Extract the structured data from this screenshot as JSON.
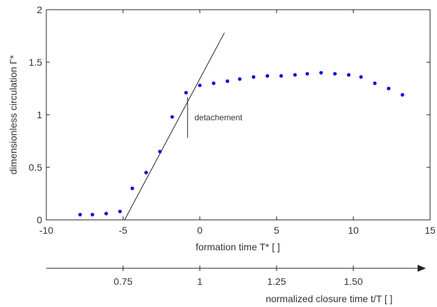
{
  "chart_data": {
    "type": "scatter",
    "title": "",
    "xlabel": "formation time T*  [ ]",
    "ylabel": "dimensionless circulation Γ*",
    "xlim": [
      -10,
      15
    ],
    "ylim": [
      0,
      2
    ],
    "xticks": [
      -10,
      -5,
      0,
      5,
      10,
      15
    ],
    "yticks": [
      0,
      0.5,
      1,
      1.5,
      2
    ],
    "xtick_labels": [
      "-10",
      "-5",
      "0",
      "5",
      "10",
      "15"
    ],
    "ytick_labels": [
      "0",
      "0.5",
      "1",
      "1.5",
      "2"
    ],
    "grid": false,
    "legend": "none",
    "marker_color": "#1010e0",
    "series": [
      {
        "x": [
          -7.8,
          -7.0,
          -6.1,
          -5.2,
          -4.4,
          -3.5,
          -2.6,
          -1.8,
          -0.9,
          0.0,
          0.9,
          1.8,
          2.6,
          3.5,
          4.4,
          5.3,
          6.2,
          7.0,
          7.9,
          8.8,
          9.7,
          10.5,
          11.4,
          12.3,
          13.2
        ],
        "y": [
          0.05,
          0.05,
          0.06,
          0.08,
          0.3,
          0.45,
          0.65,
          0.98,
          1.21,
          1.28,
          1.3,
          1.32,
          1.34,
          1.36,
          1.37,
          1.37,
          1.38,
          1.39,
          1.4,
          1.39,
          1.38,
          1.36,
          1.3,
          1.25,
          1.19
        ]
      }
    ],
    "fit_line": {
      "x": [
        -4.9,
        1.6
      ],
      "y": [
        0.0,
        1.78
      ]
    },
    "annotations": [
      {
        "text": "detachement",
        "x": -0.8,
        "y_top": 1.17,
        "y_bottom": 0.78
      }
    ],
    "secondary_axis": {
      "label": "normalized closure time t/T  [ ]",
      "ticks": [
        {
          "label": "0.75",
          "at_x": -5
        },
        {
          "label": "1",
          "at_x": 0
        },
        {
          "label": "1.25",
          "at_x": 5
        },
        {
          "label": "1.50",
          "at_x": 10
        }
      ]
    }
  }
}
